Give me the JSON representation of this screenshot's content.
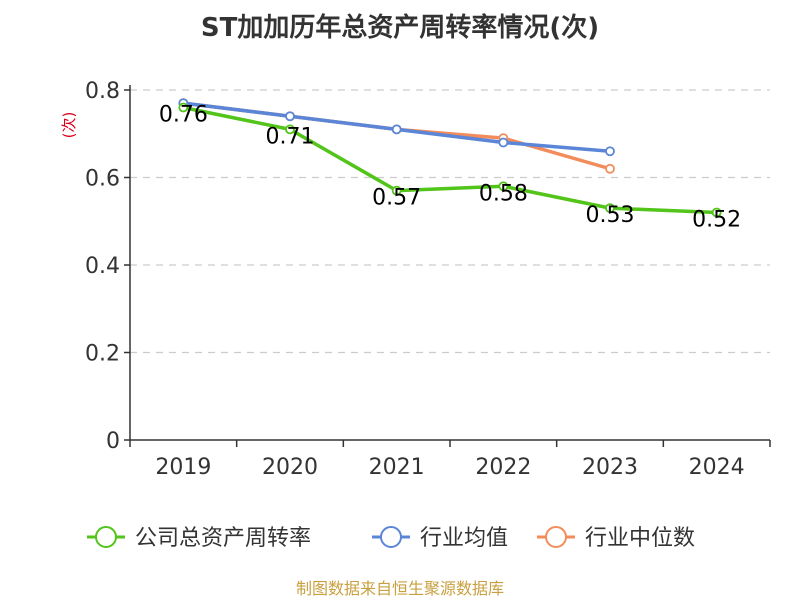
{
  "chart_data": {
    "type": "line",
    "title": "ST加加历年总资产周转率情况(次)",
    "ylabel": "(次)",
    "xlabel": "",
    "categories": [
      "2019",
      "2020",
      "2021",
      "2022",
      "2023",
      "2024"
    ],
    "ylim": [
      0,
      0.8
    ],
    "yticks": [
      "0",
      "0.2",
      "0.4",
      "0.6",
      "0.8"
    ],
    "grid": true,
    "legend_position": "bottom",
    "series": [
      {
        "name": "公司总资产周转率",
        "values": [
          0.76,
          0.71,
          0.57,
          0.58,
          0.53,
          0.52
        ],
        "labels": [
          "0.76",
          "0.71",
          "0.57",
          "0.58",
          "0.53",
          "0.52"
        ],
        "color": "#52c41a"
      },
      {
        "name": "行业均值",
        "values": [
          0.77,
          0.74,
          0.71,
          0.68,
          0.66,
          null
        ],
        "color": "#5b86d8"
      },
      {
        "name": "行业中位数",
        "values": [
          0.77,
          0.74,
          0.71,
          0.69,
          0.62,
          null
        ],
        "color": "#f28c5a"
      }
    ],
    "source": "制图数据来自恒生聚源数据库"
  }
}
